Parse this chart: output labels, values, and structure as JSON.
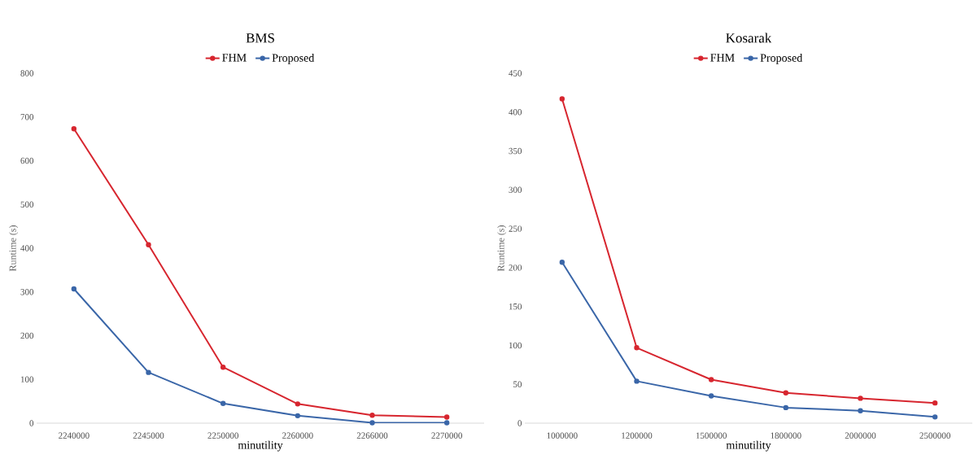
{
  "chart_data": [
    {
      "type": "line",
      "title": "BMS",
      "xlabel": "minutility",
      "ylabel": "Runtime (s)",
      "categories": [
        "2240000",
        "2245000",
        "2250000",
        "2260000",
        "2266000",
        "2270000"
      ],
      "series": [
        {
          "name": "FHM",
          "color": "#d7262f",
          "values": [
            673,
            408,
            128,
            44,
            18,
            14
          ]
        },
        {
          "name": "Proposed",
          "color": "#3a66a8",
          "values": [
            307,
            116,
            45,
            17,
            1,
            1
          ]
        }
      ],
      "ylim": [
        0,
        800
      ],
      "yticks": [
        0,
        100,
        200,
        300,
        400,
        500,
        600,
        700,
        800
      ],
      "legend": "top",
      "marker": "circle",
      "grid": false
    },
    {
      "type": "line",
      "title": "Kosarak",
      "xlabel": "minutility",
      "ylabel": "Runtime (s)",
      "categories": [
        "1000000",
        "1200000",
        "1500000",
        "1800000",
        "2000000",
        "2500000"
      ],
      "series": [
        {
          "name": "FHM",
          "color": "#d7262f",
          "values": [
            417,
            97,
            56,
            39,
            32,
            26
          ]
        },
        {
          "name": "Proposed",
          "color": "#3a66a8",
          "values": [
            207,
            54,
            35,
            20,
            16,
            8
          ]
        }
      ],
      "ylim": [
        0,
        450
      ],
      "yticks": [
        0,
        50,
        100,
        150,
        200,
        250,
        300,
        350,
        400,
        450
      ],
      "legend": "top",
      "marker": "circle",
      "grid": false
    }
  ]
}
